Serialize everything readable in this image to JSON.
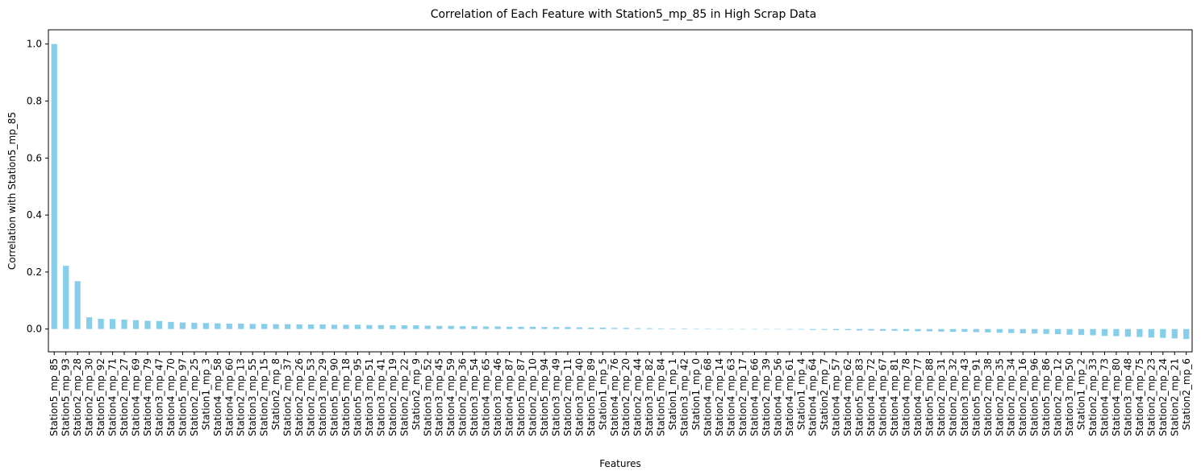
{
  "chart_data": {
    "type": "bar",
    "title": "Correlation of Each Feature with Station5_mp_85 in High Scrap Data",
    "xlabel": "Features",
    "ylabel": "Correlation with Station5_mp_85",
    "ylim": [
      -0.08,
      1.05
    ],
    "yticks": [
      "0.0",
      "0.2",
      "0.4",
      "0.6",
      "0.8",
      "1.0"
    ],
    "bar_color": "#87ceeb",
    "grid": false,
    "categories": [
      "Station5_mp_85",
      "Station5_mp_93",
      "Station2_mp_28",
      "Station2_mp_30",
      "Station5_mp_92",
      "Station4_mp_71",
      "Station2_mp_27",
      "Station4_mp_69",
      "Station4_mp_79",
      "Station3_mp_47",
      "Station4_mp_70",
      "Station5_mp_97",
      "Station2_mp_25",
      "Station1_mp_3",
      "Station4_mp_58",
      "Station4_mp_60",
      "Station2_mp_13",
      "Station3_mp_55",
      "Station2_mp_15",
      "Station2_mp_8",
      "Station2_mp_37",
      "Station2_mp_26",
      "Station2_mp_53",
      "Station3_mp_29",
      "Station5_mp_90",
      "Station5_mp_18",
      "Station5_mp_95",
      "Station3_mp_51",
      "Station3_mp_41",
      "Station2_mp_19",
      "Station2_mp_22",
      "Station2_mp_9",
      "Station3_mp_52",
      "Station3_mp_45",
      "Station4_mp_59",
      "Station2_mp_36",
      "Station3_mp_54",
      "Station4_mp_65",
      "Station3_mp_46",
      "Station4_mp_87",
      "Station5_mp_87",
      "Station2_mp_10",
      "Station5_mp_94",
      "Station3_mp_49",
      "Station2_mp_11",
      "Station3_mp_40",
      "Station5_mp_89",
      "Station1_mp_5",
      "Station4_mp_76",
      "Station2_mp_20",
      "Station2_mp_44",
      "Station3_mp_82",
      "Station5_mp_84",
      "Station1_mp_1",
      "Station3_mp_42",
      "Station1_mp_0",
      "Station4_mp_68",
      "Station2_mp_14",
      "Station4_mp_63",
      "Station2_mp_17",
      "Station4_mp_66",
      "Station2_mp_39",
      "Station4_mp_56",
      "Station4_mp_61",
      "Station1_mp_4",
      "Station4_mp_64",
      "Station2_mp_7",
      "Station4_mp_57",
      "Station4_mp_62",
      "Station5_mp_83",
      "Station4_mp_72",
      "Station4_mp_67",
      "Station4_mp_81",
      "Station4_mp_78",
      "Station4_mp_77",
      "Station5_mp_88",
      "Station2_mp_31",
      "Station2_mp_32",
      "Station3_mp_43",
      "Station5_mp_91",
      "Station2_mp_38",
      "Station2_mp_35",
      "Station2_mp_34",
      "Station2_mp_16",
      "Station5_mp_96",
      "Station5_mp_86",
      "Station2_mp_12",
      "Station3_mp_50",
      "Station1_mp_2",
      "Station2_mp_33",
      "Station4_mp_73",
      "Station4_mp_80",
      "Station3_mp_48",
      "Station4_mp_75",
      "Station2_mp_23",
      "Station2_mp_24",
      "Station2_mp_21",
      "Station2_mp_6"
    ],
    "values": [
      1.0,
      0.222,
      0.168,
      0.041,
      0.036,
      0.035,
      0.033,
      0.031,
      0.029,
      0.028,
      0.025,
      0.023,
      0.022,
      0.021,
      0.02,
      0.019,
      0.019,
      0.018,
      0.018,
      0.017,
      0.017,
      0.016,
      0.016,
      0.016,
      0.015,
      0.015,
      0.015,
      0.014,
      0.014,
      0.013,
      0.013,
      0.013,
      0.012,
      0.011,
      0.011,
      0.01,
      0.01,
      0.009,
      0.009,
      0.008,
      0.008,
      0.008,
      0.007,
      0.007,
      0.007,
      0.006,
      0.005,
      0.005,
      0.004,
      0.004,
      0.003,
      0.003,
      0.002,
      0.002,
      0.002,
      0.001,
      0.001,
      0.0,
      0.0,
      0.0,
      0.0,
      -0.001,
      -0.001,
      -0.002,
      -0.002,
      -0.003,
      -0.003,
      -0.004,
      -0.004,
      -0.005,
      -0.005,
      -0.006,
      -0.006,
      -0.007,
      -0.008,
      -0.008,
      -0.009,
      -0.01,
      -0.01,
      -0.011,
      -0.012,
      -0.013,
      -0.014,
      -0.015,
      -0.016,
      -0.017,
      -0.018,
      -0.02,
      -0.021,
      -0.022,
      -0.024,
      -0.025,
      -0.027,
      -0.028,
      -0.03,
      -0.031,
      -0.033,
      -0.035
    ]
  }
}
